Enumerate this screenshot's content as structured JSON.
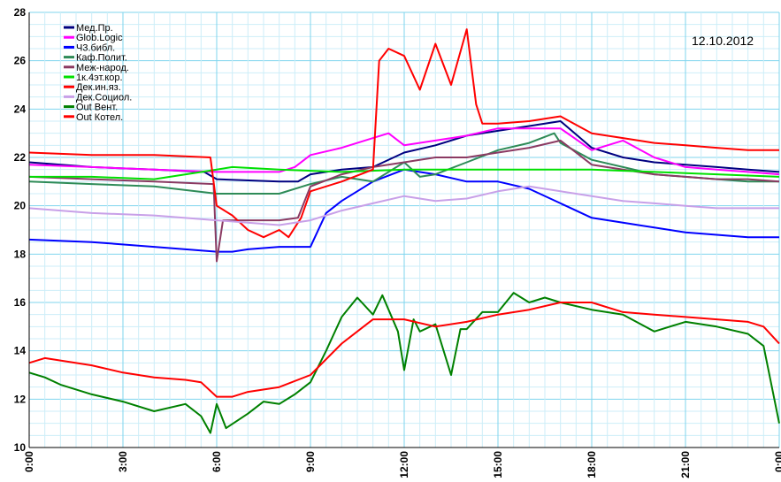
{
  "chart_data": {
    "type": "line",
    "date_label": "12.10.2012",
    "ylim": [
      10,
      28
    ],
    "y_ticks": [
      10,
      12,
      14,
      16,
      18,
      20,
      22,
      24,
      26,
      28
    ],
    "xlim": [
      0,
      24
    ],
    "x_ticks": [
      0,
      3,
      6,
      9,
      12,
      15,
      18,
      21,
      24
    ],
    "x_tick_labels": [
      "0:00",
      "3:00",
      "6:00",
      "9:00",
      "12:00",
      "15:00",
      "18:00",
      "21:00",
      "0:00"
    ],
    "grid": true,
    "legend_position": "top-left",
    "series": [
      {
        "name": "Мед.Пр.",
        "color": "#000080",
        "x": [
          0,
          2,
          4,
          5.6,
          6,
          8,
          8.6,
          9,
          10,
          11,
          12,
          13,
          14,
          15,
          16,
          17,
          18,
          19,
          20,
          21,
          22,
          23,
          24
        ],
        "y": [
          21.8,
          21.6,
          21.5,
          21.4,
          21.1,
          21.0,
          21.0,
          21.3,
          21.5,
          21.6,
          22.2,
          22.5,
          22.9,
          23.1,
          23.3,
          23.5,
          22.4,
          22.0,
          21.8,
          21.7,
          21.6,
          21.5,
          21.4
        ]
      },
      {
        "name": "Glob.Logic",
        "color": "#ff00ff",
        "x": [
          0,
          2,
          4,
          6,
          8,
          8.5,
          9,
          10,
          11,
          11.5,
          12,
          13,
          14,
          15,
          16,
          17,
          18,
          19,
          20,
          21,
          22,
          23,
          24
        ],
        "y": [
          21.7,
          21.6,
          21.5,
          21.4,
          21.4,
          21.6,
          22.1,
          22.4,
          22.8,
          23.0,
          22.5,
          22.7,
          22.9,
          23.2,
          23.2,
          23.2,
          22.3,
          22.7,
          22.0,
          21.6,
          21.5,
          21.4,
          21.3
        ]
      },
      {
        "name": "Ч3.библ.",
        "color": "#0000ff",
        "x": [
          0,
          2,
          4,
          6,
          6.5,
          7,
          8,
          9,
          9.5,
          10,
          11,
          12,
          13,
          14,
          15,
          16,
          17,
          18,
          19,
          20,
          21,
          22,
          23,
          24
        ],
        "y": [
          18.6,
          18.5,
          18.3,
          18.1,
          18.1,
          18.2,
          18.3,
          18.3,
          19.7,
          20.2,
          21.0,
          21.5,
          21.3,
          21.0,
          21.0,
          20.7,
          20.1,
          19.5,
          19.3,
          19.1,
          18.9,
          18.8,
          18.7,
          18.7
        ]
      },
      {
        "name": "Каф.Полит.",
        "color": "#2e8b57",
        "x": [
          0,
          2,
          4,
          6,
          8,
          9,
          10,
          11,
          12,
          12.5,
          13,
          14,
          15,
          16,
          16.8,
          17,
          18,
          19,
          20,
          21,
          22,
          23,
          24
        ],
        "y": [
          21.0,
          20.9,
          20.8,
          20.5,
          20.5,
          20.9,
          21.2,
          21.0,
          21.8,
          21.2,
          21.3,
          21.8,
          22.3,
          22.6,
          23.0,
          22.6,
          21.9,
          21.6,
          21.3,
          21.2,
          21.1,
          21.0,
          21.0
        ]
      },
      {
        "name": "Меж-народ.",
        "color": "#8b3a62",
        "x": [
          0,
          2,
          4,
          5.9,
          6,
          6.2,
          8,
          8.6,
          9,
          10,
          11,
          12,
          13,
          14,
          15,
          16,
          17,
          18,
          19,
          20,
          21,
          22,
          23,
          24
        ],
        "y": [
          21.2,
          21.1,
          21.0,
          20.9,
          17.7,
          19.4,
          19.4,
          19.5,
          20.8,
          21.3,
          21.6,
          21.8,
          22.0,
          22.0,
          22.2,
          22.4,
          22.7,
          21.7,
          21.5,
          21.3,
          21.2,
          21.1,
          21.1,
          21.0
        ]
      },
      {
        "name": "1к.4эт.кор.",
        "color": "#00e000",
        "x": [
          0,
          2,
          4,
          6,
          6.5,
          8,
          10,
          12,
          14,
          16,
          18,
          20,
          22,
          24
        ],
        "y": [
          21.2,
          21.2,
          21.1,
          21.5,
          21.6,
          21.5,
          21.4,
          21.5,
          21.5,
          21.5,
          21.5,
          21.4,
          21.3,
          21.2
        ]
      },
      {
        "name": "Дек.ин.яз.",
        "color": "#ff0000",
        "x": [
          0,
          2,
          4,
          5.8,
          6,
          6.5,
          7,
          7.5,
          8,
          8.3,
          8.7,
          9,
          10,
          11,
          11.2,
          11.5,
          12,
          12.5,
          13,
          13.5,
          14,
          14.3,
          14.5,
          15,
          16,
          17,
          18,
          19,
          20,
          21,
          22,
          23,
          24
        ],
        "y": [
          22.2,
          22.1,
          22.1,
          22.0,
          20.0,
          19.6,
          19.0,
          18.7,
          19.0,
          18.7,
          19.5,
          20.6,
          21.0,
          21.5,
          26.0,
          26.5,
          26.2,
          24.8,
          26.7,
          25.0,
          27.3,
          24.2,
          23.4,
          23.4,
          23.5,
          23.7,
          23.0,
          22.8,
          22.6,
          22.5,
          22.4,
          22.3,
          22.3
        ]
      },
      {
        "name": "Дек.Социол.",
        "color": "#c8a0e8",
        "x": [
          0,
          2,
          4,
          6,
          8,
          9,
          10,
          11,
          12,
          13,
          14,
          15,
          16,
          17,
          18,
          19,
          20,
          21,
          22,
          23,
          24
        ],
        "y": [
          19.9,
          19.7,
          19.6,
          19.4,
          19.2,
          19.4,
          19.8,
          20.1,
          20.4,
          20.2,
          20.3,
          20.6,
          20.8,
          20.6,
          20.4,
          20.2,
          20.1,
          20.0,
          19.9,
          19.9,
          19.9
        ]
      },
      {
        "name": "Out Вент.",
        "color": "#008000",
        "x": [
          0,
          0.5,
          1,
          2,
          3,
          4,
          5,
          5.5,
          5.8,
          6,
          6.3,
          7,
          7.5,
          8,
          8.5,
          9,
          9.5,
          10,
          10.5,
          11,
          11.3,
          11.8,
          12,
          12.3,
          12.5,
          13,
          13.5,
          13.8,
          14,
          14.5,
          15,
          15.5,
          16,
          16.5,
          17,
          18,
          19,
          20,
          21,
          22,
          23,
          23.5,
          24
        ],
        "y": [
          13.1,
          12.9,
          12.6,
          12.2,
          11.9,
          11.5,
          11.8,
          11.3,
          10.6,
          11.8,
          10.8,
          11.4,
          11.9,
          11.8,
          12.2,
          12.7,
          14.0,
          15.4,
          16.2,
          15.5,
          16.3,
          14.8,
          13.2,
          15.3,
          14.8,
          15.1,
          13.0,
          14.9,
          14.9,
          15.6,
          15.6,
          16.4,
          16.0,
          16.2,
          16.0,
          15.7,
          15.5,
          14.8,
          15.2,
          15.0,
          14.7,
          14.2,
          11.0
        ]
      },
      {
        "name": "Out Котел.",
        "color": "#ff0000",
        "x": [
          0,
          0.5,
          1,
          2,
          3,
          4,
          5,
          5.5,
          6,
          6.5,
          7,
          8,
          9,
          10,
          11,
          12,
          13,
          14,
          15,
          16,
          17,
          18,
          19,
          20,
          21,
          22,
          23,
          23.5,
          24
        ],
        "y": [
          13.5,
          13.7,
          13.6,
          13.4,
          13.1,
          12.9,
          12.8,
          12.7,
          12.1,
          12.1,
          12.3,
          12.5,
          13.0,
          14.3,
          15.3,
          15.3,
          15.0,
          15.2,
          15.5,
          15.7,
          16.0,
          16.0,
          15.6,
          15.5,
          15.4,
          15.3,
          15.2,
          15.0,
          14.3
        ]
      }
    ]
  }
}
